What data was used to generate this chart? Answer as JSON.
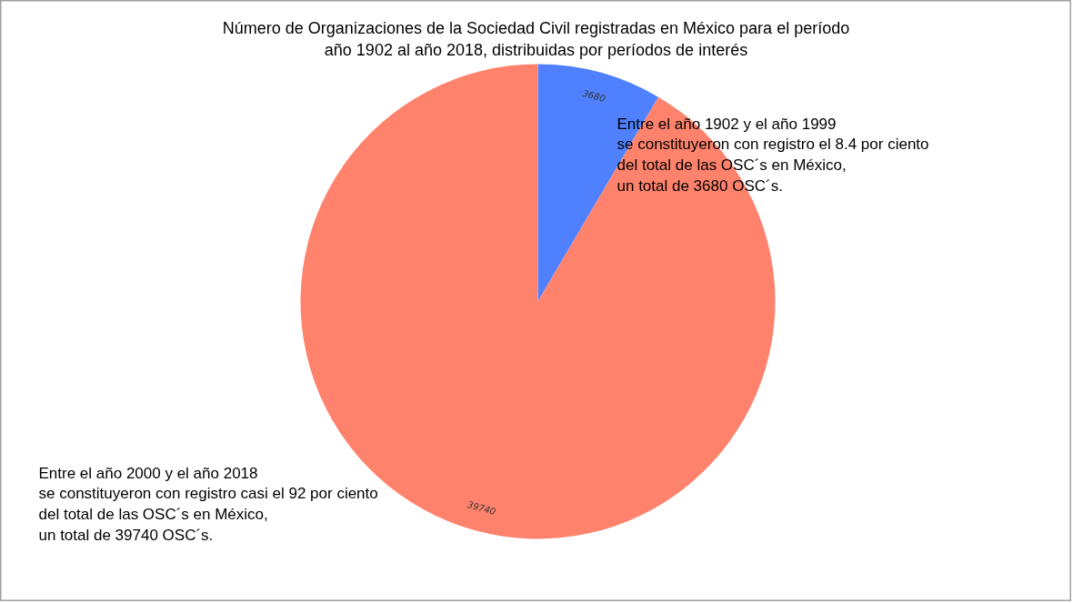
{
  "chart_data": {
    "type": "pie",
    "title": "Número de Organizaciones de la Sociedad Civil registradas en México para el período\naño 1902 al año 2018, distribuidas por períodos de interés",
    "categories": [
      null,
      null
    ],
    "values": [
      3680,
      39740
    ],
    "colors": [
      "#4f81ff",
      "#ff826c"
    ],
    "data_labels": true,
    "annotations": [
      "Entre el año 1902 y el año 1999\nse constituyeron con registro el 8.4 por ciento\ndel total de las OSC´s en México,\nun total de 3680 OSC´s.",
      "Entre el año 2000 y el año 2018\nse constituyeron con registro casi el 92 por ciento\ndel total de las OSC´s en México,\nun total de 39740 OSC´s."
    ]
  }
}
